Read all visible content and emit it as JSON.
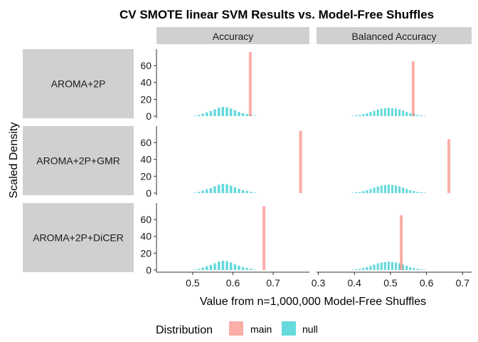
{
  "chart_data": {
    "type": "bar",
    "title": "CV SMOTE linear SVM Results vs. Model-Free Shuffles",
    "xlabel": "Value from n=1,000,000 Model-Free Shuffles",
    "ylabel": "Scaled Density",
    "facet_cols": [
      "Accuracy",
      "Balanced Accuracy"
    ],
    "facet_rows": [
      "AROMA+2P",
      "AROMA+2P+GMR",
      "AROMA+2P+DiCER"
    ],
    "panels": [
      {
        "xlim": [
          0.41,
          0.79
        ],
        "xticks": [
          "0.5",
          "0.6",
          "0.7"
        ]
      },
      {
        "xlim": [
          0.295,
          0.725
        ],
        "xticks": [
          "0.3",
          "0.4",
          "0.5",
          "0.6",
          "0.7"
        ]
      }
    ],
    "ylim": [
      0,
      77
    ],
    "yticks": [
      "0",
      "20",
      "40",
      "60"
    ],
    "legend": {
      "title": "Distribution",
      "position": "bottom",
      "entries": [
        "main",
        "null"
      ]
    },
    "colors": {
      "main": "#F8766D",
      "null": "#00BFC4"
    },
    "null_bins_accuracy": {
      "x": [
        0.505,
        0.515,
        0.525,
        0.535,
        0.545,
        0.555,
        0.565,
        0.575,
        0.585,
        0.595,
        0.605,
        0.615,
        0.625,
        0.635,
        0.645,
        0.655
      ],
      "values": [
        0.5,
        1.5,
        3,
        4.5,
        6,
        8,
        10,
        11,
        10.5,
        9,
        7,
        5,
        3.5,
        2.5,
        1.5,
        0.5
      ]
    },
    "null_bins_balanced": {
      "x": [
        0.395,
        0.405,
        0.415,
        0.425,
        0.435,
        0.445,
        0.455,
        0.465,
        0.475,
        0.485,
        0.495,
        0.505,
        0.515,
        0.525,
        0.535,
        0.545,
        0.555,
        0.565,
        0.575,
        0.585,
        0.595
      ],
      "values": [
        0.5,
        1,
        1.5,
        2.5,
        3.5,
        5,
        6.5,
        8,
        9,
        9.5,
        10,
        9.5,
        9,
        8,
        6.5,
        5,
        3.5,
        2.5,
        1.5,
        1,
        0.5
      ]
    },
    "main": [
      [
        {
          "x": 0.643,
          "y": 76
        },
        {
          "x": 0.563,
          "y": 65
        }
      ],
      [
        {
          "x": 0.768,
          "y": 74
        },
        {
          "x": 0.662,
          "y": 64
        }
      ],
      [
        {
          "x": 0.677,
          "y": 76
        },
        {
          "x": 0.53,
          "y": 65
        }
      ]
    ]
  }
}
